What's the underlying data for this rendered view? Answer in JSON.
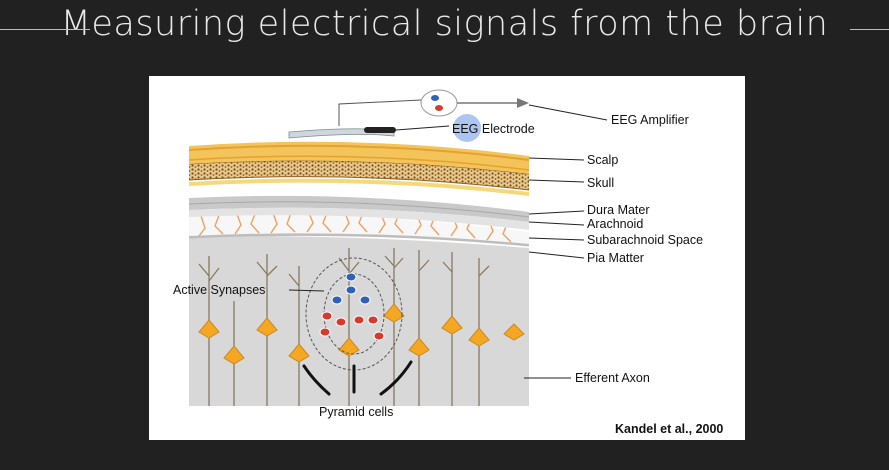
{
  "slide": {
    "title": "Measuring electrical signals from the brain"
  },
  "figure": {
    "labels": {
      "amplifier": "EEG Amplifier",
      "electrode": "EEG Electrode",
      "scalp": "Scalp",
      "skull": "Skull",
      "dura": "Dura Mater",
      "arachnoid": "Arachnoid",
      "subarachnoid": "Subarachnoid Space",
      "pia": "Pia Matter",
      "synapses": "Active Synapses",
      "axon": "Efferent Axon",
      "pyramid": "Pyramid cells"
    },
    "credit": "Kandel et al., 2000",
    "colors": {
      "scalp": "#f2c45a",
      "skull_dots": "#7a4a1e",
      "vessels": "#f0a060",
      "cortex": "#dcdcdc",
      "cell_body": "#f5a623",
      "negative_ion": "#2f62b7",
      "positive_ion": "#d63a2e"
    }
  }
}
